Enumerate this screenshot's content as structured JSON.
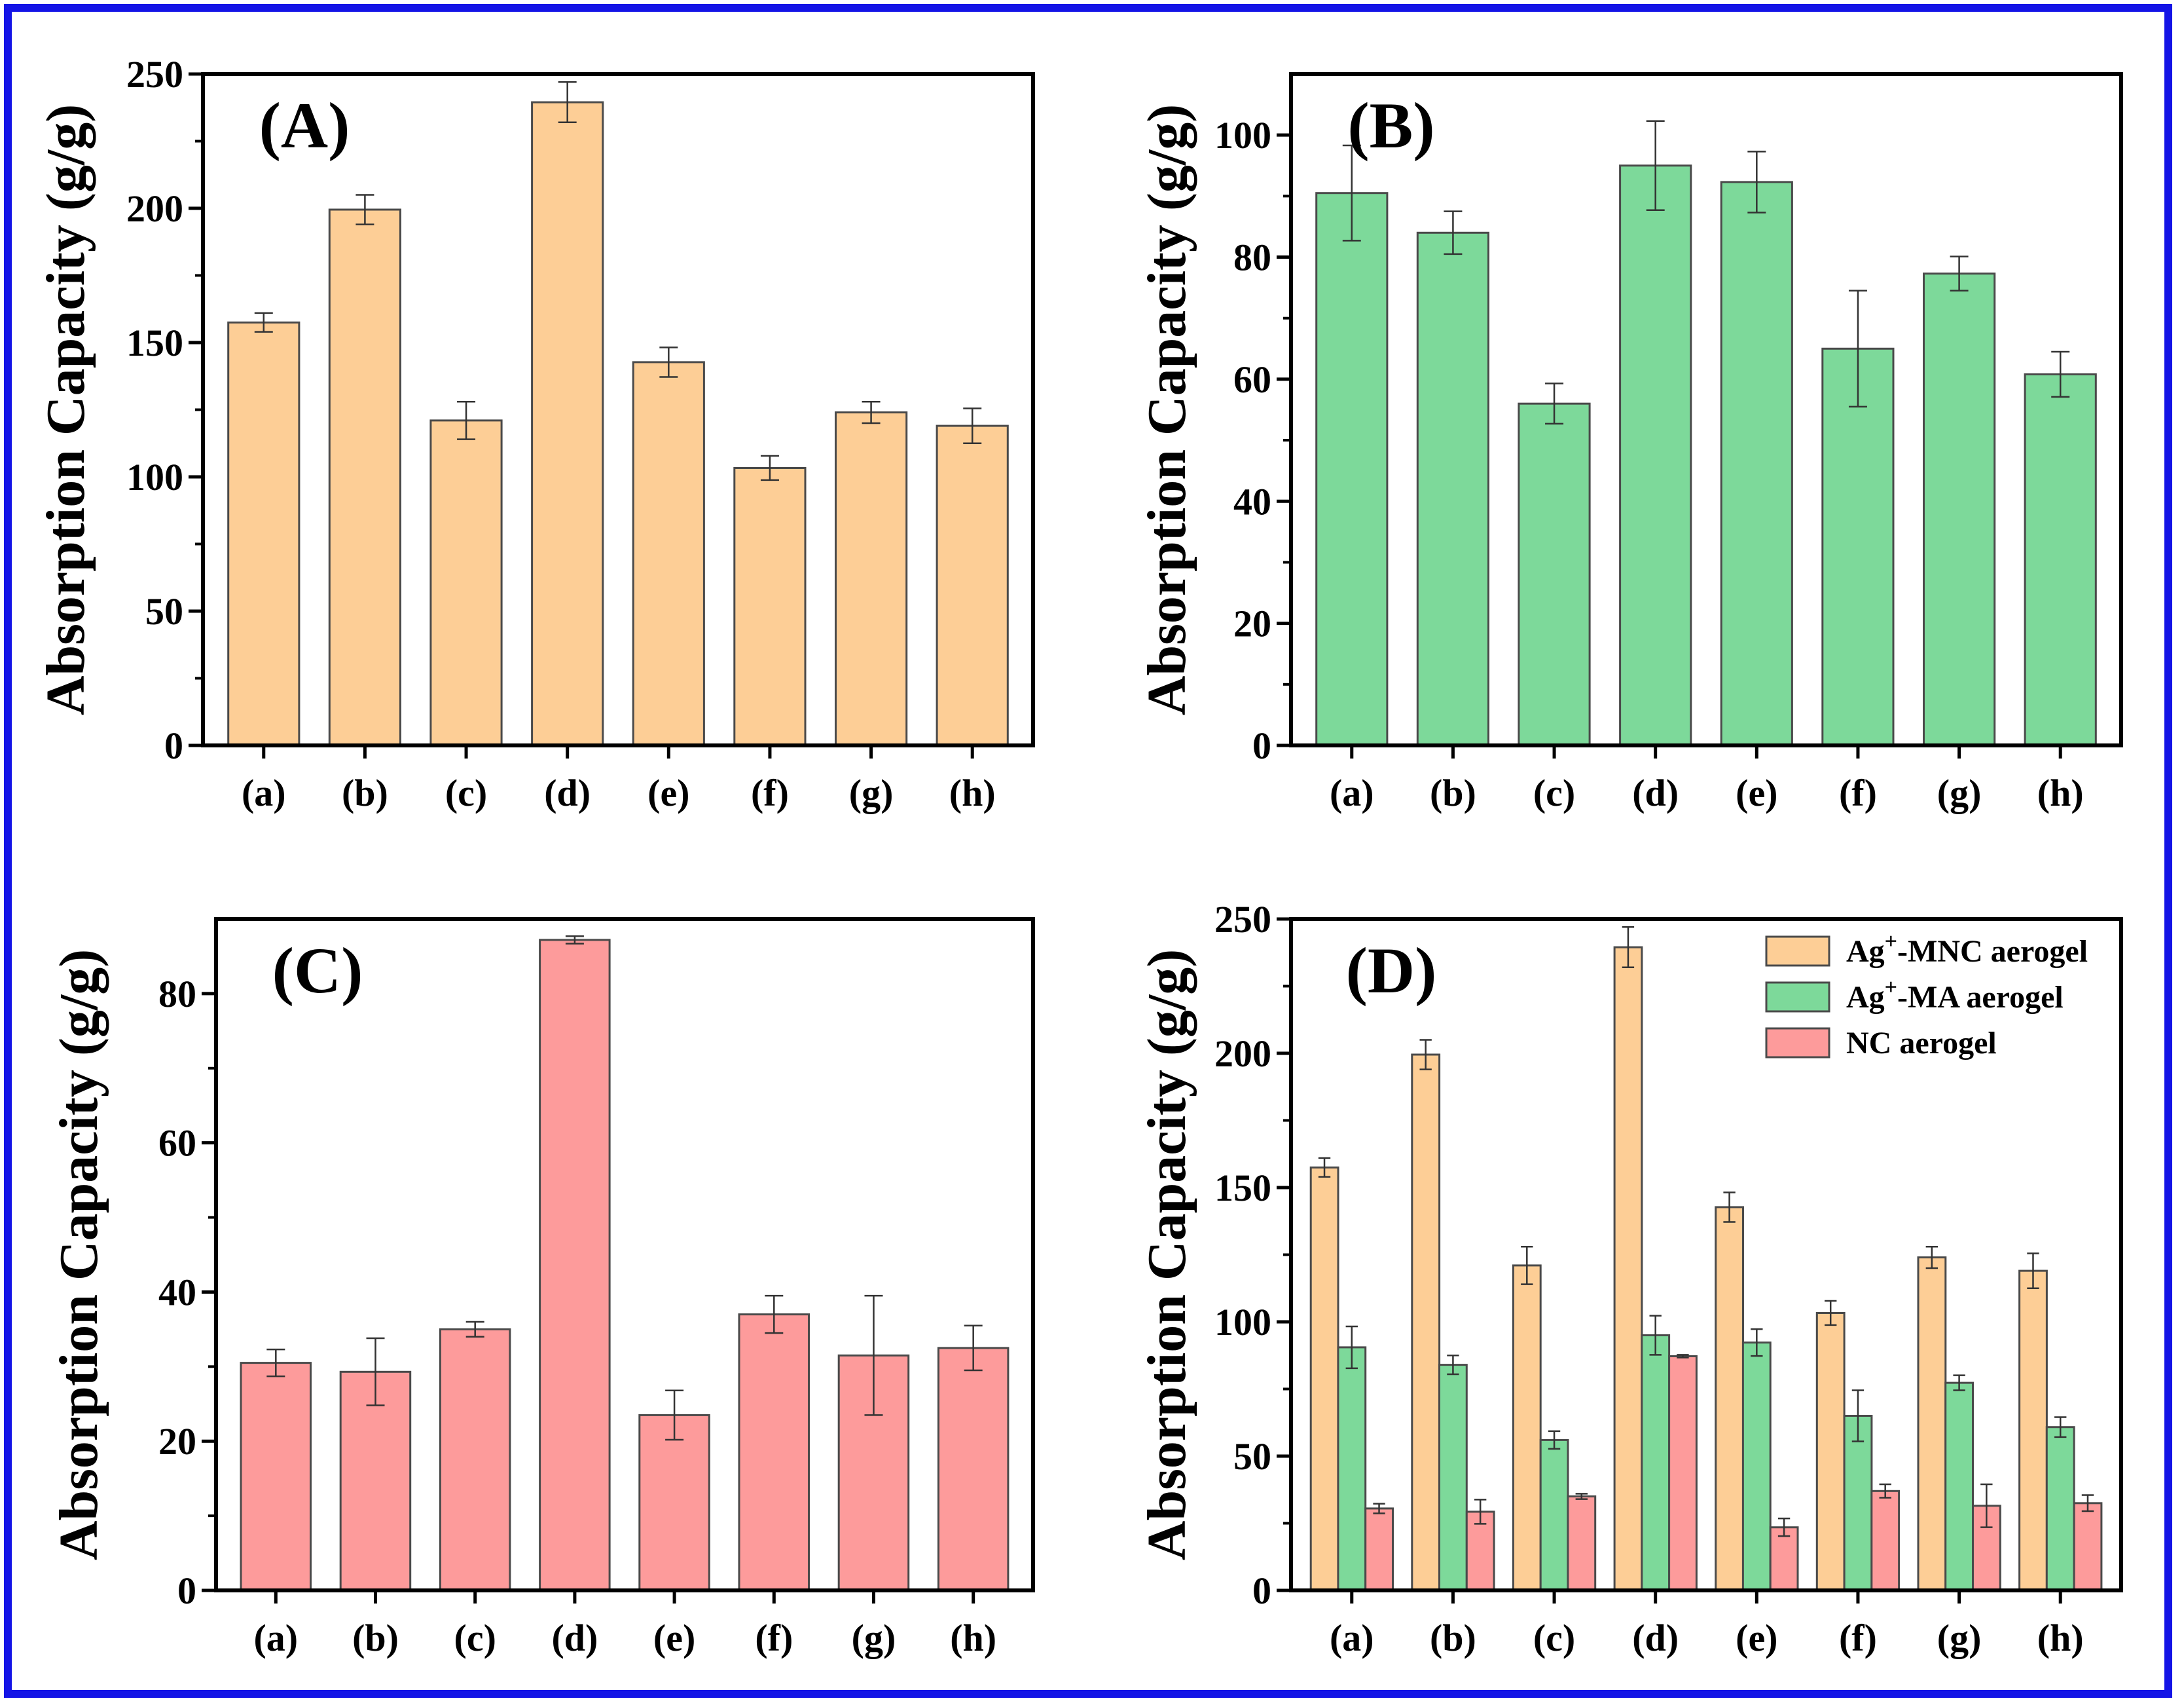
{
  "chart_data": [
    {
      "type": "bar",
      "panel_label": "(A)",
      "ylabel": "Absorption Capacity (g/g)",
      "ylim": [
        0,
        250
      ],
      "yticks": [
        "0",
        "50",
        "100",
        "150",
        "200",
        "250"
      ],
      "categories": [
        "(a)",
        "(b)",
        "(c)",
        "(d)",
        "(e)",
        "(f)",
        "(g)",
        "(h)"
      ],
      "series": [
        {
          "name": "Ag+-MNC aerogel",
          "color": "#fdce96",
          "values": [
            157.5,
            199.5,
            121,
            239.5,
            142.7,
            103.3,
            124,
            119
          ],
          "errors": [
            3.5,
            5.5,
            7,
            7.5,
            5.5,
            4.5,
            4,
            6.5
          ]
        }
      ]
    },
    {
      "type": "bar",
      "panel_label": "(B)",
      "ylabel": "Absorption Capacity (g/g)",
      "ylim": [
        0,
        110
      ],
      "yticks": [
        "0",
        "20",
        "40",
        "60",
        "80",
        "100"
      ],
      "categories": [
        "(a)",
        "(b)",
        "(c)",
        "(d)",
        "(e)",
        "(f)",
        "(g)",
        "(h)"
      ],
      "series": [
        {
          "name": "Ag+-MA aerogel",
          "color": "#7dd99a",
          "values": [
            90.5,
            84,
            56,
            95,
            92.3,
            65,
            77.3,
            60.8
          ],
          "errors": [
            7.8,
            3.5,
            3.3,
            7.3,
            5,
            9.5,
            2.8,
            3.7
          ]
        }
      ]
    },
    {
      "type": "bar",
      "panel_label": "(C)",
      "ylabel": "Absorption Capacity (g/g)",
      "ylim": [
        0,
        90
      ],
      "yticks": [
        "0",
        "20",
        "40",
        "60",
        "80"
      ],
      "categories": [
        "(a)",
        "(b)",
        "(c)",
        "(d)",
        "(e)",
        "(f)",
        "(g)",
        "(h)"
      ],
      "series": [
        {
          "name": "NC aerogel",
          "color": "#fd9b9b",
          "values": [
            30.5,
            29.3,
            35,
            87.2,
            23.5,
            37,
            31.5,
            32.5
          ],
          "errors": [
            1.8,
            4.5,
            1,
            0.5,
            3.3,
            2.5,
            8,
            3
          ]
        }
      ]
    },
    {
      "type": "bar",
      "panel_label": "(D)",
      "ylabel": "Absorption Capacity (g/g)",
      "ylim": [
        0,
        250
      ],
      "yticks": [
        "0",
        "50",
        "100",
        "150",
        "200",
        "250"
      ],
      "categories": [
        "(a)",
        "(b)",
        "(c)",
        "(d)",
        "(e)",
        "(f)",
        "(g)",
        "(h)"
      ],
      "legend_position": "top-right",
      "series": [
        {
          "name": "Ag+-MNC aerogel",
          "color": "#fdce96",
          "values": [
            157.5,
            199.5,
            121,
            239.5,
            142.7,
            103.3,
            124,
            119
          ],
          "errors": [
            3.5,
            5.5,
            7,
            7.5,
            5.5,
            4.5,
            4,
            6.5
          ]
        },
        {
          "name": "Ag+-MA aerogel",
          "color": "#7dd99a",
          "values": [
            90.5,
            84,
            56,
            95,
            92.3,
            65,
            77.3,
            60.8
          ],
          "errors": [
            7.8,
            3.5,
            3.3,
            7.3,
            5,
            9.5,
            2.8,
            3.7
          ]
        },
        {
          "name": "NC aerogel",
          "color": "#fd9b9b",
          "values": [
            30.5,
            29.3,
            35,
            87.2,
            23.5,
            37,
            31.5,
            32.5
          ],
          "errors": [
            1.8,
            4.5,
            1,
            0.5,
            3.3,
            2.5,
            8,
            3
          ]
        }
      ]
    }
  ]
}
